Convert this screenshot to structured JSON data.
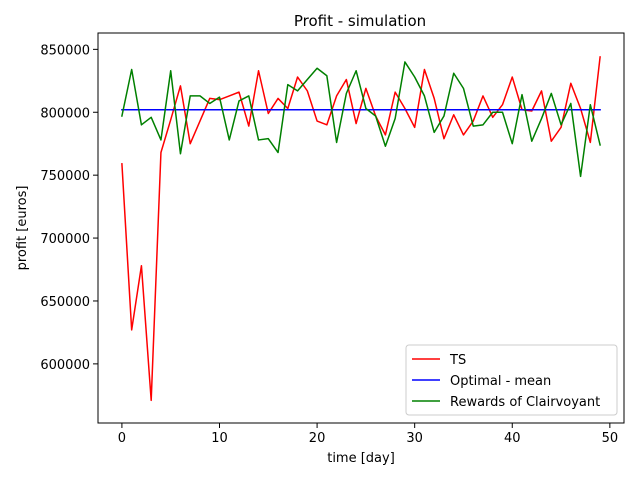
{
  "chart_data": {
    "type": "line",
    "title": "Profit - simulation",
    "xlabel": "time [day]",
    "ylabel": "profit [euros]",
    "xlim": [
      -2.45,
      51.45
    ],
    "ylim": [
      553000,
      863000
    ],
    "xticks": [
      0,
      10,
      20,
      30,
      40,
      50
    ],
    "yticks": [
      600000,
      650000,
      700000,
      750000,
      800000,
      850000
    ],
    "xtick_labels": [
      "0",
      "10",
      "20",
      "30",
      "40",
      "50"
    ],
    "ytick_labels": [
      "600000",
      "650000",
      "700000",
      "750000",
      "800000",
      "850000"
    ],
    "grid": false,
    "legend_position": "lower-right",
    "x": [
      0,
      1,
      2,
      3,
      4,
      5,
      6,
      7,
      8,
      9,
      10,
      11,
      12,
      13,
      14,
      15,
      16,
      17,
      18,
      19,
      20,
      21,
      22,
      23,
      24,
      25,
      26,
      27,
      28,
      29,
      30,
      31,
      32,
      33,
      34,
      35,
      36,
      37,
      38,
      39,
      40,
      41,
      42,
      43,
      44,
      45,
      46,
      47,
      48,
      49
    ],
    "series": [
      {
        "name": "TS",
        "color": "#ff0000",
        "values": [
          759000,
          627000,
          678000,
          571000,
          768000,
          794000,
          821000,
          775000,
          793000,
          811000,
          810000,
          813000,
          816000,
          789000,
          833000,
          799000,
          811000,
          803000,
          828000,
          817000,
          793000,
          790000,
          813000,
          826000,
          791000,
          819000,
          797000,
          782000,
          816000,
          803000,
          788000,
          834000,
          811000,
          779000,
          798000,
          782000,
          793000,
          813000,
          796000,
          806000,
          828000,
          802000,
          801000,
          817000,
          777000,
          788000,
          823000,
          803000,
          776000,
          844000
        ]
      },
      {
        "name": "Optimal - mean",
        "color": "#0000ff",
        "values": [
          802000,
          802000,
          802000,
          802000,
          802000,
          802000,
          802000,
          802000,
          802000,
          802000,
          802000,
          802000,
          802000,
          802000,
          802000,
          802000,
          802000,
          802000,
          802000,
          802000,
          802000,
          802000,
          802000,
          802000,
          802000,
          802000,
          802000,
          802000,
          802000,
          802000,
          802000,
          802000,
          802000,
          802000,
          802000,
          802000,
          802000,
          802000,
          802000,
          802000,
          802000,
          802000,
          802000,
          802000,
          802000,
          802000,
          802000,
          802000,
          802000,
          802000
        ]
      },
      {
        "name": "Rewards of Clairvoyant",
        "color": "#008000",
        "values": [
          797000,
          834000,
          790000,
          796000,
          778000,
          833000,
          767000,
          813000,
          813000,
          807000,
          812000,
          778000,
          809000,
          813000,
          778000,
          779000,
          768000,
          822000,
          817000,
          826000,
          835000,
          829000,
          776000,
          815000,
          833000,
          803000,
          797000,
          773000,
          795000,
          840000,
          828000,
          813000,
          784000,
          797000,
          831000,
          819000,
          789000,
          790000,
          800000,
          800000,
          775000,
          814000,
          777000,
          795000,
          815000,
          790000,
          807000,
          749000,
          806000,
          774000
        ]
      }
    ]
  }
}
